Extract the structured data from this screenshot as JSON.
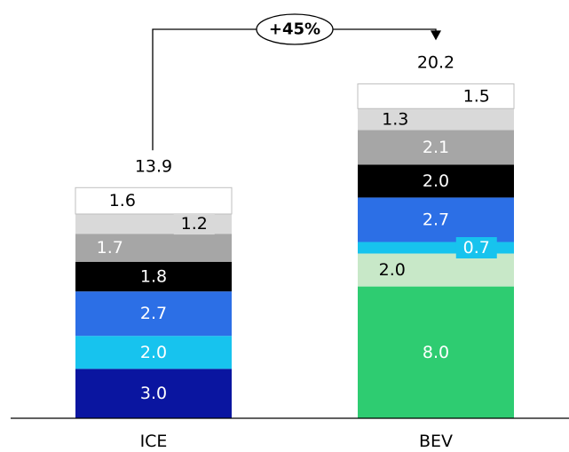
{
  "chart_data": {
    "type": "bar",
    "stacked": true,
    "categories": [
      "ICE",
      "BEV"
    ],
    "totals": [
      "13.9",
      "20.2"
    ],
    "growth_label": "+45%",
    "ylim": [
      0,
      22
    ],
    "bars": [
      {
        "category": "ICE",
        "segments": [
          {
            "value": 3.0,
            "label": "3.0",
            "color": "#0a15a0",
            "text_color": "#ffffff"
          },
          {
            "value": 2.0,
            "label": "2.0",
            "color": "#17c3ee",
            "text_color": "#ffffff"
          },
          {
            "value": 2.7,
            "label": "2.7",
            "color": "#2c6fe6",
            "text_color": "#ffffff"
          },
          {
            "value": 1.8,
            "label": "1.8",
            "color": "#000000",
            "text_color": "#ffffff"
          },
          {
            "value": 1.7,
            "label": "1.7",
            "color": "#a6a6a6",
            "text_color": "#ffffff"
          },
          {
            "value": 1.2,
            "label": "1.2",
            "color": "#d9d9d9",
            "text_color": "#000000"
          },
          {
            "value": 1.6,
            "label": "1.6",
            "color": "#ffffff",
            "text_color": "#000000"
          }
        ]
      },
      {
        "category": "BEV",
        "segments": [
          {
            "value": 8.0,
            "label": "8.0",
            "color": "#2ecc71",
            "text_color": "#ffffff"
          },
          {
            "value": 2.0,
            "label": "2.0",
            "color": "#c8e8c8",
            "text_color": "#000000"
          },
          {
            "value": 0.7,
            "label": "0.7",
            "color": "#17c3ee",
            "text_color": "#ffffff"
          },
          {
            "value": 2.7,
            "label": "2.7",
            "color": "#2c6fe6",
            "text_color": "#ffffff"
          },
          {
            "value": 2.0,
            "label": "2.0",
            "color": "#000000",
            "text_color": "#ffffff"
          },
          {
            "value": 2.1,
            "label": "2.1",
            "color": "#a6a6a6",
            "text_color": "#ffffff"
          },
          {
            "value": 1.3,
            "label": "1.3",
            "color": "#d9d9d9",
            "text_color": "#000000"
          },
          {
            "value": 1.5,
            "label": "1.5",
            "color": "#ffffff",
            "text_color": "#000000"
          }
        ]
      }
    ]
  }
}
